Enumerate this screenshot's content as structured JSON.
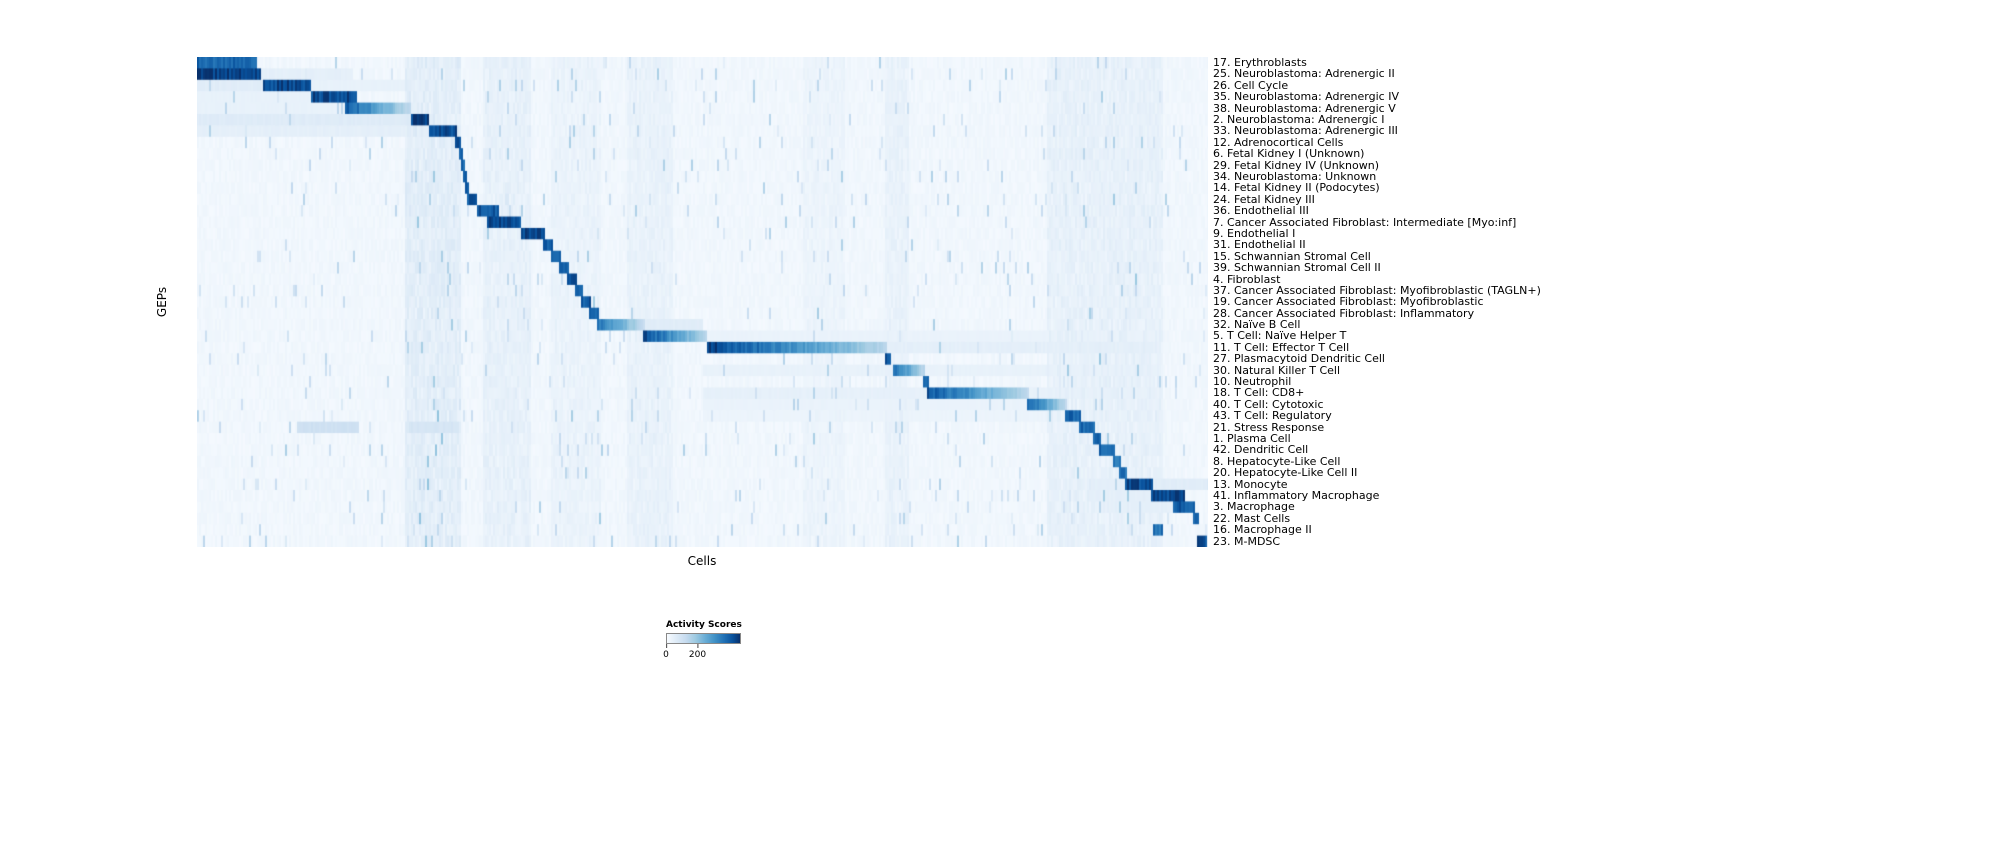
{
  "figure": {
    "x_axis_label": "Cells",
    "y_axis_label": "GEPs"
  },
  "chart_data": {
    "type": "heatmap",
    "title": "",
    "xlabel": "Cells",
    "ylabel": "GEPs",
    "colormap": "Blues",
    "value_range": [
      0,
      200
    ],
    "legend": {
      "title": "Activity Scores",
      "ticks": [
        {
          "label": "0",
          "pos": 0.0
        },
        {
          "label": "200",
          "pos": 0.42
        }
      ]
    },
    "color_stops": [
      [
        0.0,
        "#f7fbff"
      ],
      [
        0.13,
        "#deebf7"
      ],
      [
        0.26,
        "#c6dbef"
      ],
      [
        0.39,
        "#9ecae1"
      ],
      [
        0.52,
        "#6baed6"
      ],
      [
        0.65,
        "#4292c6"
      ],
      [
        0.78,
        "#2171b5"
      ],
      [
        0.9,
        "#08519c"
      ],
      [
        1.0,
        "#08306b"
      ]
    ],
    "noise_base": 0.015,
    "noise_jitter": 0.035,
    "speckle_prob": 0.03,
    "vertical_bands": [
      [
        0.205,
        0.262,
        0.09
      ],
      [
        0.283,
        0.33,
        0.06
      ],
      [
        0.35,
        0.4,
        0.04
      ],
      [
        0.425,
        0.47,
        0.05
      ],
      [
        0.6,
        0.64,
        0.03
      ],
      [
        0.68,
        0.705,
        0.05
      ],
      [
        0.84,
        0.955,
        0.06
      ]
    ],
    "rows": [
      {
        "label": "17. Erythroblasts",
        "blocks": [
          [
            0.0,
            0.06,
            0.85,
            0
          ]
        ]
      },
      {
        "label": "25. Neuroblastoma: Adrenergic II",
        "blocks": [
          [
            0.0,
            0.063,
            1.0,
            0
          ],
          [
            0.063,
            0.155,
            0.1,
            0
          ]
        ]
      },
      {
        "label": "26. Cell Cycle",
        "blocks": [
          [
            0.065,
            0.112,
            0.95,
            0
          ],
          [
            0.0,
            0.065,
            0.12,
            0
          ],
          [
            0.112,
            0.21,
            0.08,
            0
          ]
        ]
      },
      {
        "label": "35. Neuroblastoma: Adrenergic IV",
        "blocks": [
          [
            0.112,
            0.158,
            0.95,
            0
          ],
          [
            0.0,
            0.112,
            0.08,
            0
          ]
        ]
      },
      {
        "label": "38. Neuroblastoma: Adrenergic V",
        "blocks": [
          [
            0.147,
            0.211,
            0.9,
            1
          ],
          [
            0.0,
            0.147,
            0.08,
            0
          ]
        ]
      },
      {
        "label": "2. Neuroblastoma: Adrenergic I",
        "blocks": [
          [
            0.212,
            0.229,
            1.0,
            0
          ],
          [
            0.0,
            0.212,
            0.13,
            0
          ]
        ]
      },
      {
        "label": "33. Neuroblastoma: Adrenergic III",
        "blocks": [
          [
            0.229,
            0.258,
            0.95,
            0
          ],
          [
            0.0,
            0.229,
            0.1,
            0
          ]
        ]
      },
      {
        "label": "12. Adrenocortical Cells",
        "blocks": [
          [
            0.256,
            0.261,
            0.9,
            0
          ]
        ]
      },
      {
        "label": "6. Fetal Kidney I (Unknown)",
        "blocks": [
          [
            0.259,
            0.263,
            0.85,
            0
          ]
        ]
      },
      {
        "label": "29. Fetal Kidney IV (Unknown)",
        "blocks": [
          [
            0.261,
            0.265,
            0.85,
            0
          ]
        ]
      },
      {
        "label": "34. Neuroblastoma: Unknown",
        "blocks": [
          [
            0.263,
            0.267,
            0.85,
            0
          ]
        ]
      },
      {
        "label": "14. Fetal Kidney II (Podocytes)",
        "blocks": [
          [
            0.265,
            0.27,
            0.9,
            0
          ]
        ]
      },
      {
        "label": "24. Fetal Kidney III",
        "blocks": [
          [
            0.268,
            0.277,
            0.9,
            0
          ]
        ]
      },
      {
        "label": "36. Endothelial III",
        "blocks": [
          [
            0.277,
            0.298,
            0.9,
            0
          ]
        ]
      },
      {
        "label": "7. Cancer Associated Fibroblast: Intermediate [Myo:inf]",
        "blocks": [
          [
            0.286,
            0.32,
            0.95,
            0
          ]
        ]
      },
      {
        "label": "9. Endothelial I",
        "blocks": [
          [
            0.32,
            0.344,
            0.95,
            0
          ]
        ]
      },
      {
        "label": "31. Endothelial II",
        "blocks": [
          [
            0.342,
            0.352,
            0.9,
            0
          ]
        ]
      },
      {
        "label": "15. Schwannian Stromal Cell",
        "blocks": [
          [
            0.35,
            0.36,
            0.9,
            0
          ]
        ]
      },
      {
        "label": "39. Schwannian Stromal Cell II",
        "blocks": [
          [
            0.358,
            0.367,
            0.85,
            0
          ]
        ]
      },
      {
        "label": "4. Fibroblast",
        "blocks": [
          [
            0.365,
            0.375,
            0.9,
            0
          ]
        ]
      },
      {
        "label": "37. Cancer Associated Fibroblast: Myofibroblastic (TAGLN+)",
        "blocks": [
          [
            0.373,
            0.382,
            0.9,
            0
          ]
        ]
      },
      {
        "label": "19. Cancer Associated Fibroblast: Myofibroblastic",
        "blocks": [
          [
            0.38,
            0.389,
            0.9,
            0
          ]
        ]
      },
      {
        "label": "28. Cancer Associated Fibroblast: Inflammatory",
        "blocks": [
          [
            0.387,
            0.397,
            0.85,
            0
          ]
        ]
      },
      {
        "label": "32. Naïve B Cell",
        "blocks": [
          [
            0.396,
            0.443,
            0.8,
            1
          ],
          [
            0.443,
            0.5,
            0.12,
            0
          ]
        ]
      },
      {
        "label": "5. T Cell: Naïve Helper T",
        "blocks": [
          [
            0.442,
            0.505,
            0.95,
            1
          ],
          [
            0.505,
            0.95,
            0.07,
            0
          ]
        ]
      },
      {
        "label": "11. T Cell: Effector T Cell",
        "blocks": [
          [
            0.504,
            0.682,
            1.0,
            1
          ],
          [
            0.682,
            0.95,
            0.1,
            0
          ]
        ]
      },
      {
        "label": "27. Plasmacytoid Dendritic Cell",
        "blocks": [
          [
            0.68,
            0.686,
            0.9,
            0
          ]
        ]
      },
      {
        "label": "30. Natural Killer T Cell",
        "blocks": [
          [
            0.688,
            0.721,
            0.85,
            1
          ],
          [
            0.5,
            0.688,
            0.08,
            0
          ],
          [
            0.721,
            0.95,
            0.08,
            0
          ]
        ]
      },
      {
        "label": "10. Neutrophil",
        "blocks": [
          [
            0.719,
            0.725,
            0.8,
            0
          ]
        ]
      },
      {
        "label": "18. T Cell: CD8+",
        "blocks": [
          [
            0.723,
            0.822,
            0.92,
            1
          ],
          [
            0.5,
            0.723,
            0.09,
            0
          ],
          [
            0.822,
            0.95,
            0.08,
            0
          ]
        ]
      },
      {
        "label": "40. T Cell: Cytotoxic",
        "blocks": [
          [
            0.82,
            0.86,
            0.9,
            1
          ],
          [
            0.5,
            0.82,
            0.07,
            0
          ]
        ]
      },
      {
        "label": "43. T Cell: Regulatory",
        "blocks": [
          [
            0.858,
            0.874,
            0.85,
            0
          ],
          [
            0.5,
            0.858,
            0.06,
            0
          ]
        ]
      },
      {
        "label": "21. Stress Response",
        "blocks": [
          [
            0.872,
            0.889,
            0.85,
            0
          ],
          [
            0.1,
            0.16,
            0.22,
            0
          ],
          [
            0.21,
            0.26,
            0.18,
            0
          ]
        ]
      },
      {
        "label": "1. Plasma Cell",
        "blocks": [
          [
            0.887,
            0.894,
            0.85,
            0
          ]
        ]
      },
      {
        "label": "42. Dendritic Cell",
        "blocks": [
          [
            0.893,
            0.909,
            0.85,
            0
          ]
        ]
      },
      {
        "label": "8. Hepatocyte-Like Cell",
        "blocks": [
          [
            0.907,
            0.914,
            0.8,
            0
          ]
        ]
      },
      {
        "label": "20. Hepatocyte-Like Cell II",
        "blocks": [
          [
            0.912,
            0.919,
            0.8,
            0
          ]
        ]
      },
      {
        "label": "13. Monocyte",
        "blocks": [
          [
            0.917,
            0.945,
            0.95,
            0
          ],
          [
            0.88,
            0.917,
            0.1,
            0
          ],
          [
            0.945,
            1.0,
            0.12,
            0
          ]
        ]
      },
      {
        "label": "41. Inflammatory Macrophage",
        "blocks": [
          [
            0.943,
            0.978,
            0.95,
            0
          ],
          [
            0.88,
            0.943,
            0.1,
            0
          ]
        ]
      },
      {
        "label": "3. Macrophage",
        "blocks": [
          [
            0.966,
            0.988,
            0.9,
            0
          ],
          [
            0.9,
            0.966,
            0.1,
            0
          ]
        ]
      },
      {
        "label": "22. Mast Cells",
        "blocks": [
          [
            0.986,
            0.991,
            0.9,
            0
          ]
        ]
      },
      {
        "label": "16. Macrophage II",
        "blocks": [
          [
            0.945,
            0.955,
            0.8,
            0
          ]
        ]
      },
      {
        "label": "23. M-MDSC",
        "blocks": [
          [
            0.99,
            1.0,
            0.95,
            0
          ]
        ]
      }
    ]
  }
}
